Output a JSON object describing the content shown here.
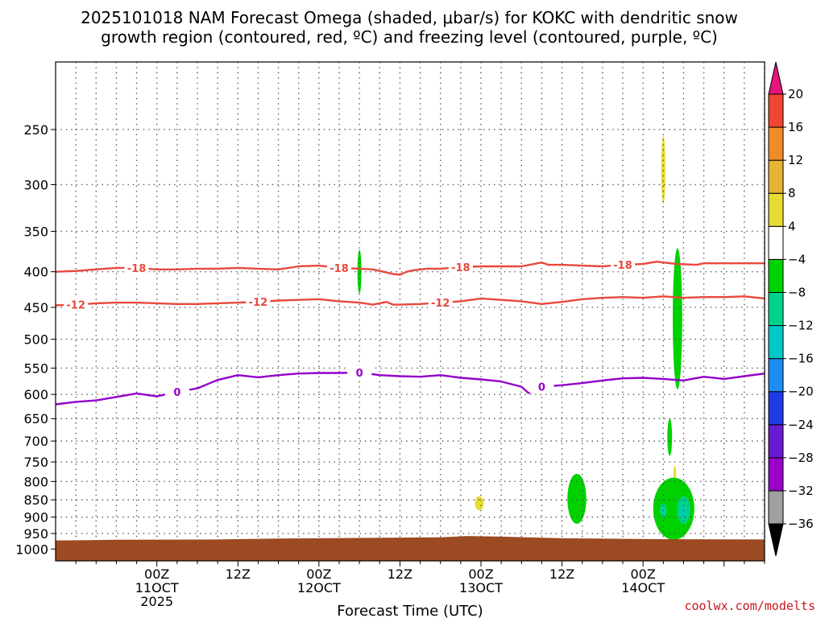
{
  "header": {
    "title_line1": "2025101018 NAM Forecast Omega (shaded, μbar/s) for KOKC with dendritic snow",
    "title_line2": "growth region (contoured, red, ºC) and freezing level (contoured, purple, ºC)"
  },
  "footer": {
    "xlabel": "Forecast Time (UTC)",
    "credit": "coolwx.com/modelts"
  },
  "colors": {
    "dgz_contour": "#e8483c",
    "freezing_contour": "#9400cc",
    "ground": "#9c4a22",
    "gridline": "#555555"
  },
  "chart_data": {
    "type": "heatmap",
    "x_axis": {
      "unit": "forecast hour",
      "range": [
        -9,
        96
      ],
      "ticks": [
        {
          "value": 6,
          "line1": "00Z",
          "line2": "11OCT",
          "line3": "2025"
        },
        {
          "value": 18,
          "line1": "12Z",
          "line2": "",
          "line3": ""
        },
        {
          "value": 30,
          "line1": "00Z",
          "line2": "12OCT",
          "line3": ""
        },
        {
          "value": 42,
          "line1": "12Z",
          "line2": "",
          "line3": ""
        },
        {
          "value": 54,
          "line1": "00Z",
          "line2": "13OCT",
          "line3": ""
        },
        {
          "value": 66,
          "line1": "12Z",
          "line2": "",
          "line3": ""
        },
        {
          "value": 78,
          "line1": "00Z",
          "line2": "14OCT",
          "line3": ""
        }
      ]
    },
    "y_axis": {
      "unit": "hPa",
      "scale": "log",
      "inverted": true,
      "range": [
        1040,
        200
      ],
      "ticks": [
        250,
        300,
        350,
        400,
        450,
        500,
        550,
        600,
        650,
        700,
        750,
        800,
        850,
        900,
        950,
        1000
      ]
    },
    "grid": true,
    "colorbar": {
      "levels": [
        -36,
        -32,
        -28,
        -24,
        -20,
        -16,
        -12,
        -8,
        -4,
        4,
        8,
        12,
        16,
        20
      ],
      "labels": [
        "20",
        "16",
        "12",
        "8",
        "4",
        "−4",
        "−8",
        "−12",
        "−16",
        "−20",
        "−24",
        "−28",
        "−32",
        "−36"
      ],
      "colors": [
        "#000000",
        "#a0a0a0",
        "#9a00c8",
        "#6a1ad2",
        "#1e3ce6",
        "#1e8cf0",
        "#00c8c8",
        "#00d28c",
        "#00d200",
        "#ffffff",
        "#e6dc32",
        "#e6b432",
        "#f08c28",
        "#f04632",
        "#e6147d"
      ]
    },
    "contours": [
      {
        "name": "-18",
        "color": "#e8483c",
        "labels_at_hours": [
          3,
          33,
          51,
          75
        ],
        "points": [
          [
            -9,
            400
          ],
          [
            -6,
            399
          ],
          [
            -3,
            397
          ],
          [
            0,
            395
          ],
          [
            3,
            395
          ],
          [
            6,
            397
          ],
          [
            9,
            397
          ],
          [
            12,
            396
          ],
          [
            15,
            396
          ],
          [
            18,
            395
          ],
          [
            21,
            396
          ],
          [
            24,
            397
          ],
          [
            27,
            393
          ],
          [
            30,
            392
          ],
          [
            33,
            395
          ],
          [
            36,
            396
          ],
          [
            38,
            397
          ],
          [
            40,
            401
          ],
          [
            41,
            403
          ],
          [
            42,
            404
          ],
          [
            43,
            400
          ],
          [
            44,
            398
          ],
          [
            46,
            396
          ],
          [
            48,
            396
          ],
          [
            51,
            394
          ],
          [
            54,
            393
          ],
          [
            57,
            393
          ],
          [
            60,
            393
          ],
          [
            63,
            388
          ],
          [
            64,
            391
          ],
          [
            66,
            391
          ],
          [
            69,
            392
          ],
          [
            72,
            393
          ],
          [
            75,
            391
          ],
          [
            78,
            390
          ],
          [
            80,
            387
          ],
          [
            83,
            390
          ],
          [
            86,
            391
          ],
          [
            87,
            389
          ],
          [
            90,
            389
          ],
          [
            93,
            389
          ],
          [
            96,
            389
          ]
        ]
      },
      {
        "name": "-12",
        "color": "#e8483c",
        "labels_at_hours": [
          -6,
          21,
          48
        ],
        "points": [
          [
            -9,
            447
          ],
          [
            -6,
            446
          ],
          [
            -3,
            444
          ],
          [
            0,
            443
          ],
          [
            3,
            443
          ],
          [
            6,
            444
          ],
          [
            9,
            445
          ],
          [
            12,
            445
          ],
          [
            15,
            444
          ],
          [
            18,
            443
          ],
          [
            21,
            442
          ],
          [
            24,
            440
          ],
          [
            27,
            439
          ],
          [
            30,
            438
          ],
          [
            33,
            441
          ],
          [
            36,
            443
          ],
          [
            38,
            446
          ],
          [
            40,
            442
          ],
          [
            41,
            446
          ],
          [
            42,
            446
          ],
          [
            45,
            445
          ],
          [
            48,
            443
          ],
          [
            51,
            441
          ],
          [
            54,
            437
          ],
          [
            57,
            439
          ],
          [
            60,
            441
          ],
          [
            63,
            445
          ],
          [
            66,
            442
          ],
          [
            69,
            438
          ],
          [
            72,
            436
          ],
          [
            75,
            435
          ],
          [
            78,
            436
          ],
          [
            81,
            434
          ],
          [
            84,
            436
          ],
          [
            87,
            435
          ],
          [
            90,
            435
          ],
          [
            93,
            434
          ],
          [
            96,
            437
          ]
        ]
      },
      {
        "name": "0",
        "color": "#9400cc",
        "labels_at_hours": [
          9,
          36,
          63
        ],
        "points": [
          [
            -9,
            620
          ],
          [
            -6,
            615
          ],
          [
            -3,
            612
          ],
          [
            0,
            605
          ],
          [
            3,
            598
          ],
          [
            6,
            604
          ],
          [
            9,
            595
          ],
          [
            12,
            588
          ],
          [
            15,
            572
          ],
          [
            18,
            563
          ],
          [
            21,
            567
          ],
          [
            24,
            563
          ],
          [
            27,
            560
          ],
          [
            30,
            559
          ],
          [
            33,
            559
          ],
          [
            36,
            558
          ],
          [
            39,
            563
          ],
          [
            42,
            565
          ],
          [
            45,
            566
          ],
          [
            48,
            563
          ],
          [
            51,
            568
          ],
          [
            54,
            571
          ],
          [
            57,
            575
          ],
          [
            60,
            585
          ],
          [
            61,
            597
          ],
          [
            62,
            595
          ],
          [
            63,
            585
          ],
          [
            66,
            582
          ],
          [
            69,
            578
          ],
          [
            72,
            573
          ],
          [
            75,
            569
          ],
          [
            78,
            568
          ],
          [
            81,
            570
          ],
          [
            84,
            573
          ],
          [
            87,
            566
          ],
          [
            90,
            570
          ],
          [
            93,
            565
          ],
          [
            96,
            560
          ]
        ]
      }
    ],
    "shaded_regions": [
      {
        "level": "-8 to -4",
        "color": "#00d200",
        "hour_range": [
          35.7,
          36.3
        ],
        "pressure_range": [
          372,
          430
        ]
      },
      {
        "level": "4 to 8",
        "color": "#e6dc32",
        "hour_range": [
          80.7,
          81.3
        ],
        "pressure_range": [
          255,
          320
        ]
      },
      {
        "level": "4 to 8",
        "color": "#e6dc32",
        "hour_range": [
          53.1,
          54.4
        ],
        "pressure_range": [
          840,
          880
        ]
      },
      {
        "level": "-8 to -4",
        "color": "#00d200",
        "hour_range": [
          82.4,
          83.8
        ],
        "pressure_range": [
          370,
          590
        ]
      },
      {
        "level": "-8 to -4",
        "color": "#00d200",
        "hour_range": [
          81.6,
          82.3
        ],
        "pressure_range": [
          650,
          735
        ]
      },
      {
        "level": "4 to 8",
        "color": "#e6dc32",
        "hour_range": [
          82.5,
          82.9
        ],
        "pressure_range": [
          760,
          805
        ]
      },
      {
        "level": "-8 to -4",
        "color": "#00d200",
        "hour_range": [
          66.8,
          69.6
        ],
        "pressure_range": [
          780,
          920
        ]
      },
      {
        "level": "-8 to -4",
        "color": "#00d200",
        "hour_range": [
          79.5,
          85.6
        ],
        "pressure_range": [
          790,
          970
        ]
      },
      {
        "level": "-12 to -8",
        "color": "#00d28c",
        "hour_range": [
          83.0,
          85.0
        ],
        "pressure_range": [
          840,
          920
        ]
      },
      {
        "level": "-16 to -12",
        "color": "#00c8c8",
        "hour_range": [
          83.8,
          84.3
        ],
        "pressure_range": [
          870,
          905
        ]
      },
      {
        "level": "-12 to -8",
        "color": "#00d28c",
        "hour_range": [
          80.5,
          81.5
        ],
        "pressure_range": [
          860,
          900
        ]
      }
    ],
    "surface_pressure": [
      {
        "hour": -9,
        "value": 972
      },
      {
        "hour": -4,
        "value": 971
      },
      {
        "hour": 0,
        "value": 970
      },
      {
        "hour": 15,
        "value": 969
      },
      {
        "hour": 24,
        "value": 966
      },
      {
        "hour": 36,
        "value": 964
      },
      {
        "hour": 48,
        "value": 962
      },
      {
        "hour": 52,
        "value": 958
      },
      {
        "hour": 57,
        "value": 960
      },
      {
        "hour": 66,
        "value": 965
      },
      {
        "hour": 80,
        "value": 968
      },
      {
        "hour": 96,
        "value": 969
      }
    ]
  }
}
